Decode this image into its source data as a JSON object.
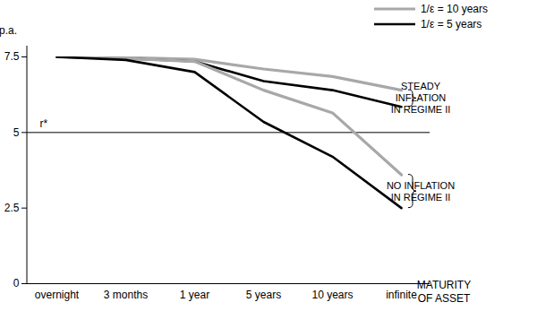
{
  "chart_data": {
    "type": "line",
    "y_label": "% p.a.",
    "x_label": "MATURITY OF ASSET",
    "categories": [
      "overnight",
      "3 months",
      "1 year",
      "5 years",
      "10 years",
      "infinite"
    ],
    "ylim": [
      0,
      7.5
    ],
    "yticks": [
      0,
      2.5,
      5,
      7.5
    ],
    "grid": false,
    "legend": "top-right",
    "reference_line": {
      "value": 5,
      "label": "r*"
    },
    "series": [
      {
        "name": "1/ε = 10 years",
        "color": "#a8a8a8",
        "values": [
          7.5,
          7.48,
          7.42,
          7.1,
          6.85,
          6.4
        ]
      },
      {
        "name": "1/ε = 5 years",
        "color": "#000000",
        "values": [
          7.5,
          7.45,
          7.35,
          6.7,
          6.4,
          5.85
        ]
      },
      {
        "name": "1/ε = 10 years",
        "color": "#a8a8a8",
        "values": [
          7.5,
          7.45,
          7.35,
          6.4,
          5.65,
          3.6
        ]
      },
      {
        "name": "1/ε = 5 years",
        "color": "#000000",
        "values": [
          7.5,
          7.4,
          7.0,
          5.35,
          4.2,
          2.5
        ]
      }
    ],
    "annotations": [
      {
        "text": [
          "STEADY",
          "INFLATION",
          "IN REGIME II"
        ]
      },
      {
        "text": [
          "NO INFLATION",
          "IN REGIME II"
        ]
      }
    ]
  }
}
